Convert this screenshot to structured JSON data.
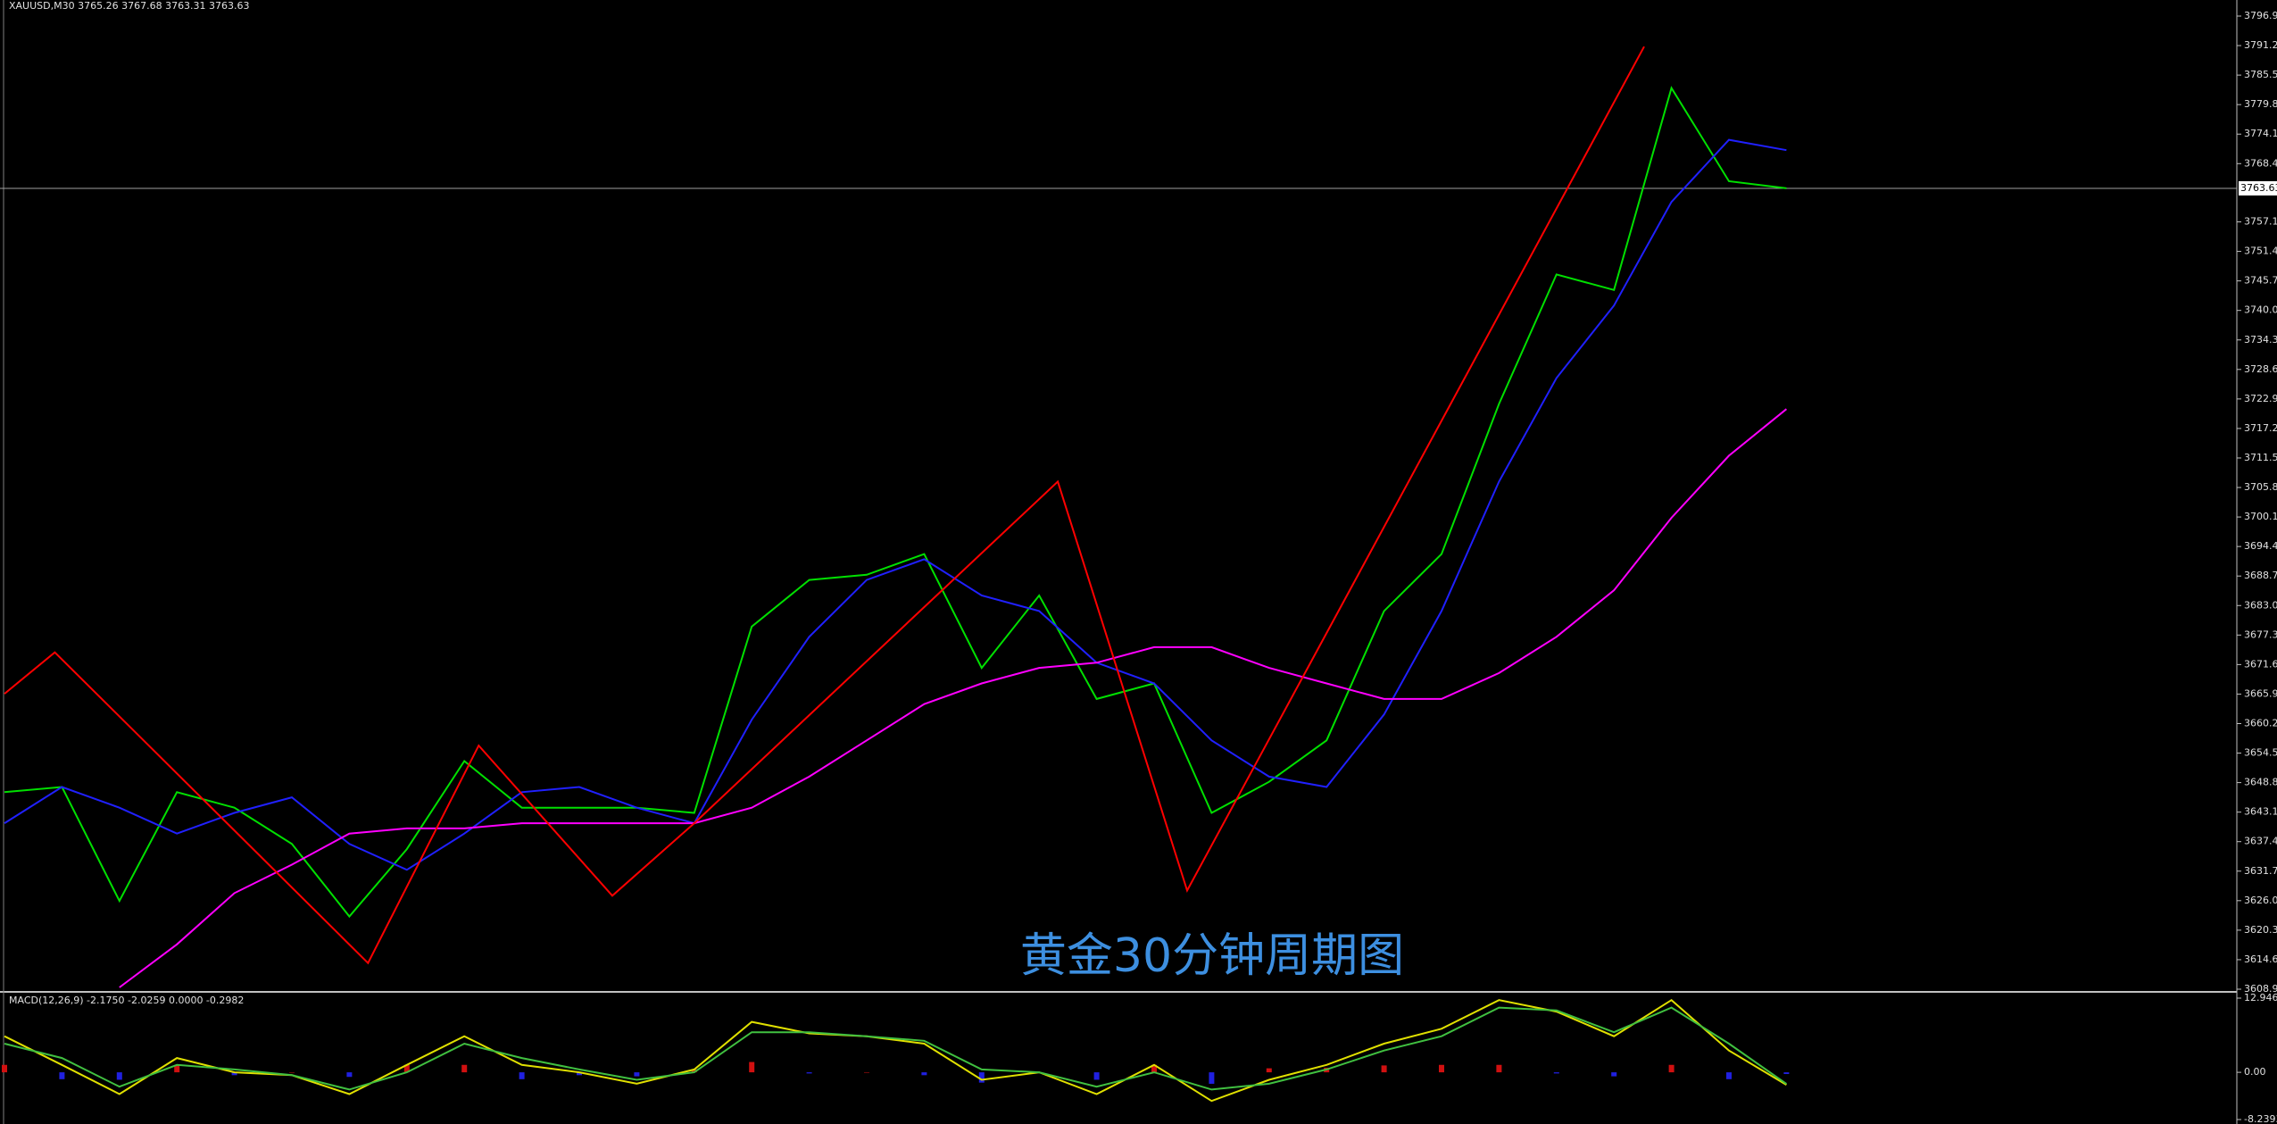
{
  "header": "XAUUSD,M30  3765.26 3767.68 3763.31 3763.63",
  "chart_data": [
    {
      "type": "line",
      "title": "黄金30分钟周期图",
      "ylim": [
        3608.95,
        3796.9
      ],
      "yticks": [
        {
          "value": 3796.9,
          "label": "3796.90"
        },
        {
          "value": 3791.2,
          "label": "3791.20"
        },
        {
          "value": 3785.5,
          "label": "3785.50"
        },
        {
          "value": 3779.8,
          "label": "3779.80"
        },
        {
          "value": 3774.1,
          "label": "3774.10"
        },
        {
          "value": 3768.4,
          "label": "3768.40"
        },
        3757.15,
        3751.45,
        3745.75,
        3740.05,
        3734.35,
        3728.65,
        3722.95,
        3717.25,
        3711.55,
        3705.85,
        3700.15,
        3694.45,
        3688.75,
        3683.05,
        3677.35,
        3671.65,
        3665.95,
        3660.25,
        3654.55,
        3648.85,
        3643.15,
        3637.45,
        3631.75,
        3626.05,
        3620.35,
        3614.65,
        3608.95
      ],
      "last_price": 3763.63,
      "series": [
        {
          "color": "#00e000",
          "values": [
            3647,
            3648,
            3626,
            3647,
            3644,
            3637,
            3623,
            3636,
            3653,
            3644,
            3644,
            3644,
            3643,
            3679,
            3688,
            3689,
            3693,
            3671,
            3685,
            3665,
            3668,
            3643,
            3649,
            3657,
            3682,
            3693,
            3722,
            3747,
            3744,
            3783,
            3765,
            3763.63
          ]
        },
        {
          "color": "#2020ff",
          "values": [
            3641,
            3648,
            3644,
            3639,
            3643,
            3646,
            3637,
            3632,
            3639,
            3647,
            3648,
            3644,
            3641,
            3661,
            3677,
            3688,
            3692,
            3685,
            3682,
            3672,
            3668,
            3657,
            3650,
            3648,
            3662,
            3682,
            3707,
            3727,
            3741,
            3761,
            3773,
            3771
          ]
        },
        {
          "color": "#ff00ff",
          "values": [
            null,
            null,
            3609.3,
            3617.6,
            3627.5,
            3633,
            3639,
            3640,
            3640,
            3641,
            3641,
            3641,
            3641,
            3644,
            3650,
            3657,
            3664,
            3668,
            3671,
            3672,
            3675,
            3675,
            3671,
            3668,
            3665,
            3665,
            3670,
            3677,
            3686,
            3700,
            3712,
            3721
          ]
        }
      ],
      "zigzag": {
        "color": "#ff0000",
        "x": [
          0,
          0.875,
          6.325,
          8.25,
          10.575,
          12,
          18.325,
          20.575,
          28.525
        ],
        "values": [
          3666,
          3674,
          3614,
          3656,
          3627,
          3641,
          3707,
          3628,
          3791
        ]
      }
    },
    {
      "type": "macd",
      "title": "MACD(12,26,9) -2.1750 -2.0259 0.0000 -0.2982",
      "ylim": [
        -8.2393,
        12.9462
      ],
      "yticks": [
        12.9462,
        {
          "value": 0,
          "label": "0.00"
        },
        -8.2393
      ],
      "series": [
        {
          "color": "#e0e000",
          "values": [
            6.3,
            1.3,
            -3.8,
            2.5,
            0,
            -0.5,
            -3.8,
            1.3,
            6.3,
            1.3,
            0,
            -2,
            0.5,
            8.8,
            6.8,
            6.3,
            5,
            -1.3,
            0,
            -3.8,
            1.3,
            -5,
            -1.3,
            1.3,
            5,
            7.6,
            12.6,
            10.6,
            6.3,
            12.6,
            3.8,
            -2.175
          ]
        },
        {
          "color": "#40c040",
          "values": [
            5,
            2.5,
            -2.5,
            1.3,
            0.5,
            -0.5,
            -3,
            0,
            5,
            2.5,
            0.5,
            -1.3,
            0,
            7,
            7,
            6.3,
            5.5,
            0.5,
            0,
            -2.5,
            0,
            -3,
            -2,
            0.5,
            3.8,
            6.3,
            11.3,
            10.8,
            7,
            11.3,
            5,
            -2.0259
          ]
        }
      ],
      "histogram": {
        "up_color": "#d01010",
        "down_color": "#2020e0",
        "values": [
          1.3,
          -1.2,
          -1.3,
          1.2,
          -0.5,
          0,
          -0.8,
          1.3,
          1.3,
          -1.2,
          -0.5,
          -0.7,
          0.5,
          1.8,
          -0.2,
          0,
          -0.5,
          -1.8,
          0,
          -1.3,
          1.3,
          -2,
          0.7,
          0.8,
          1.2,
          1.3,
          1.3,
          -0.2,
          -0.7,
          1.3,
          -1.2,
          -0.2982
        ]
      }
    }
  ]
}
